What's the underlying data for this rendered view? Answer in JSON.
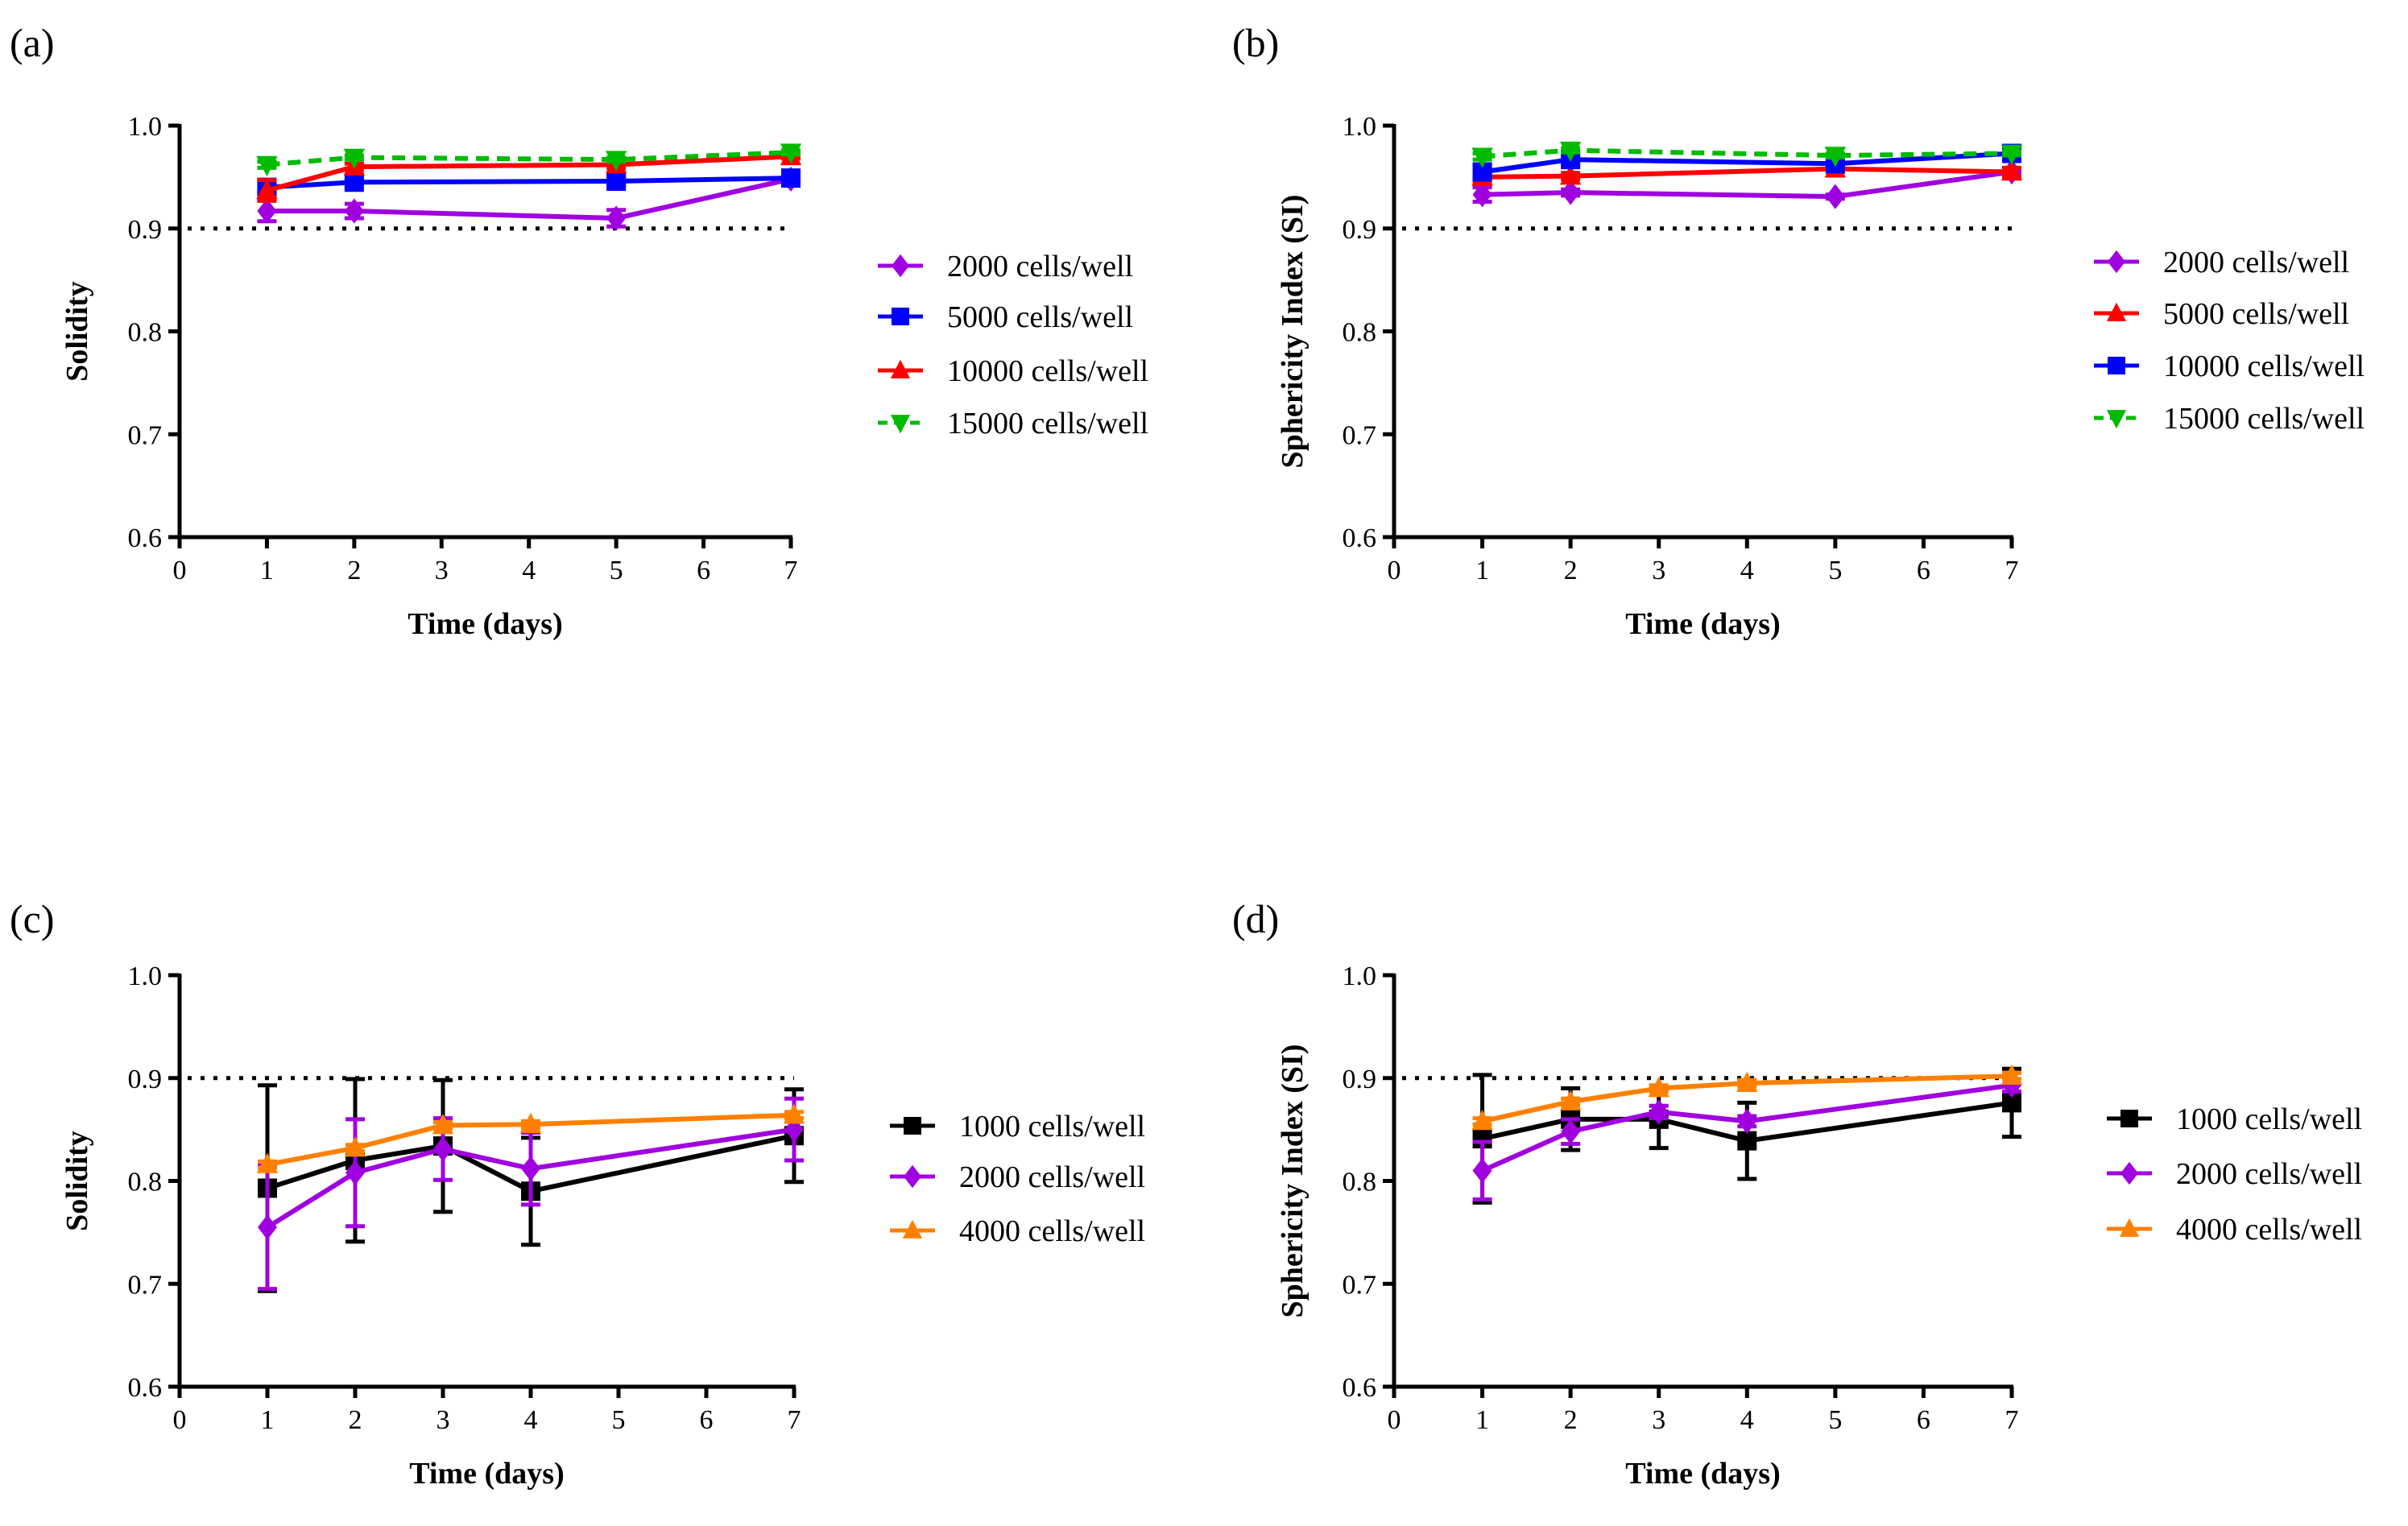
{
  "chart_data": [
    {
      "panel": "(a)",
      "type": "line",
      "xlabel": "Time (days)",
      "ylabel": "Solidity",
      "xlim": [
        0,
        7
      ],
      "ylim": [
        0.6,
        1.0
      ],
      "xticks": [
        "0",
        "1",
        "2",
        "3",
        "4",
        "5",
        "6",
        "7"
      ],
      "yticks": [
        "0.6",
        "0.7",
        "0.8",
        "0.9",
        "1.0"
      ],
      "reference_line": 0.9,
      "legend": "right",
      "x": [
        1,
        2,
        5,
        7
      ],
      "series": [
        {
          "name": "2000 cells/well",
          "color": "#a000e0",
          "marker": "diamond",
          "dashed": false,
          "values": [
            0.917,
            0.917,
            0.91,
            0.948
          ],
          "err": [
            0.01,
            0.007,
            0.008,
            0.003
          ]
        },
        {
          "name": "5000 cells/well",
          "color": "#0000ff",
          "marker": "square",
          "dashed": false,
          "values": [
            0.94,
            0.945,
            0.946,
            0.949
          ],
          "err": [
            0.005,
            0.003,
            0.004,
            0.003
          ]
        },
        {
          "name": "10000 cells/well",
          "color": "#ff0000",
          "marker": "triangle-up",
          "dashed": false,
          "values": [
            0.937,
            0.96,
            0.962,
            0.97
          ],
          "err": [
            0.01,
            0.003,
            0.003,
            0.002
          ]
        },
        {
          "name": "15000 cells/well",
          "color": "#00bb00",
          "marker": "triangle-down",
          "dashed": true,
          "values": [
            0.962,
            0.969,
            0.967,
            0.974
          ],
          "err": [
            0.003,
            0.002,
            0.002,
            0.002
          ]
        }
      ]
    },
    {
      "panel": "(b)",
      "type": "line",
      "xlabel": "Time (days)",
      "ylabel": "Sphericity Index (SI)",
      "xlim": [
        0,
        7
      ],
      "ylim": [
        0.6,
        1.0
      ],
      "xticks": [
        "0",
        "1",
        "2",
        "3",
        "4",
        "5",
        "6",
        "7"
      ],
      "yticks": [
        "0.6",
        "0.7",
        "0.8",
        "0.9",
        "1.0"
      ],
      "reference_line": 0.9,
      "legend": "right",
      "x": [
        1,
        2,
        5,
        7
      ],
      "series": [
        {
          "name": "2000 cells/well",
          "color": "#a000e0",
          "marker": "diamond",
          "dashed": false,
          "values": [
            0.933,
            0.935,
            0.931,
            0.955
          ],
          "err": [
            0.007,
            0.003,
            0.002,
            0.002
          ]
        },
        {
          "name": "5000 cells/well",
          "color": "#ff0000",
          "marker": "triangle-up",
          "dashed": false,
          "values": [
            0.95,
            0.951,
            0.958,
            0.955
          ],
          "err": [
            0.004,
            0.003,
            0.003,
            0.004
          ]
        },
        {
          "name": "10000 cells/well",
          "color": "#0000ff",
          "marker": "square",
          "dashed": false,
          "values": [
            0.955,
            0.967,
            0.963,
            0.973
          ],
          "err": [
            0.006,
            0.004,
            0.004,
            0.003
          ]
        },
        {
          "name": "15000 cells/well",
          "color": "#00bb00",
          "marker": "triangle-down",
          "dashed": true,
          "values": [
            0.97,
            0.976,
            0.971,
            0.973
          ],
          "err": [
            0.003,
            0.002,
            0.002,
            0.002
          ]
        }
      ]
    },
    {
      "panel": "(c)",
      "type": "line",
      "xlabel": "Time (days)",
      "ylabel": "Solidity",
      "xlim": [
        0,
        7
      ],
      "ylim": [
        0.6,
        1.0
      ],
      "xticks": [
        "0",
        "1",
        "2",
        "3",
        "4",
        "5",
        "6",
        "7"
      ],
      "yticks": [
        "0.6",
        "0.7",
        "0.8",
        "0.9",
        "1.0"
      ],
      "reference_line": 0.9,
      "legend": "right",
      "x": [
        1,
        2,
        3,
        4,
        7
      ],
      "series": [
        {
          "name": "1000 cells/well",
          "color": "#000000",
          "marker": "square",
          "dashed": false,
          "values": [
            0.793,
            0.82,
            0.834,
            0.79,
            0.844
          ],
          "err": [
            0.1,
            0.079,
            0.064,
            0.052,
            0.045
          ]
        },
        {
          "name": "2000 cells/well",
          "color": "#a000e0",
          "marker": "diamond",
          "dashed": false,
          "values": [
            0.755,
            0.808,
            0.831,
            0.812,
            0.85
          ],
          "err": [
            0.06,
            0.052,
            0.03,
            0.035,
            0.03
          ]
        },
        {
          "name": "4000 cells/well",
          "color": "#ff8000",
          "marker": "triangle-up",
          "dashed": false,
          "values": [
            0.816,
            0.832,
            0.854,
            0.855,
            0.864
          ],
          "err": [
            0.003,
            0.003,
            0.003,
            0.003,
            0.003
          ]
        }
      ]
    },
    {
      "panel": "(d)",
      "type": "line",
      "xlabel": "Time (days)",
      "ylabel": "Sphericity Index (SI)",
      "xlim": [
        0,
        7
      ],
      "ylim": [
        0.6,
        1.0
      ],
      "xticks": [
        "0",
        "1",
        "2",
        "3",
        "4",
        "5",
        "6",
        "7"
      ],
      "yticks": [
        "0.6",
        "0.7",
        "0.8",
        "0.9",
        "1.0"
      ],
      "reference_line": 0.9,
      "legend": "right",
      "x": [
        1,
        2,
        3,
        4,
        7
      ],
      "series": [
        {
          "name": "1000 cells/well",
          "color": "#000000",
          "marker": "square",
          "dashed": false,
          "values": [
            0.841,
            0.86,
            0.86,
            0.839,
            0.876
          ],
          "err": [
            0.062,
            0.03,
            0.028,
            0.037,
            0.033
          ]
        },
        {
          "name": "2000 cells/well",
          "color": "#a000e0",
          "marker": "diamond",
          "dashed": false,
          "values": [
            0.81,
            0.848,
            0.867,
            0.858,
            0.893
          ],
          "err": [
            0.028,
            0.012,
            0.006,
            0.005,
            0.006
          ]
        },
        {
          "name": "4000 cells/well",
          "color": "#ff8000",
          "marker": "triangle-up",
          "dashed": false,
          "values": [
            0.858,
            0.877,
            0.89,
            0.895,
            0.902
          ],
          "err": [
            0.003,
            0.003,
            0.003,
            0.003,
            0.003
          ]
        }
      ]
    }
  ]
}
